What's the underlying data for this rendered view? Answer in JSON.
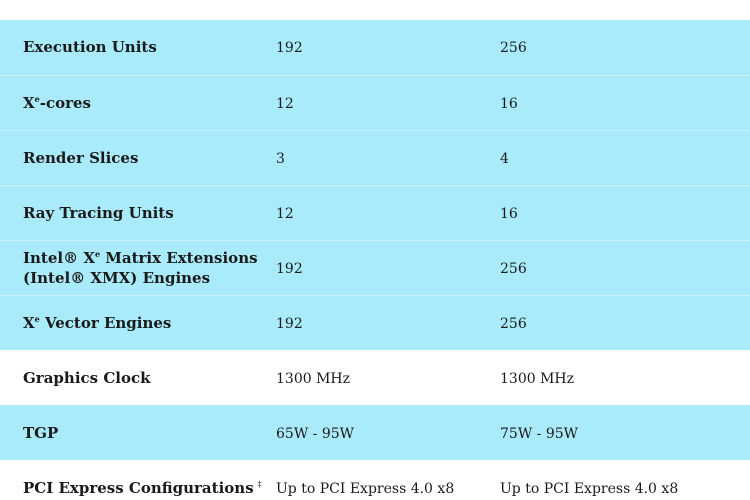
{
  "rows": [
    {
      "pre": "Execution Units",
      "sup": "",
      "post": "",
      "note": "",
      "v1": "192",
      "v2": "256",
      "bg": "cyan"
    },
    {
      "pre": "X",
      "sup": "e",
      "post": "-cores",
      "note": "",
      "v1": "12",
      "v2": "16",
      "bg": "cyan"
    },
    {
      "pre": "Render Slices",
      "sup": "",
      "post": "",
      "note": "",
      "v1": "3",
      "v2": "4",
      "bg": "cyan"
    },
    {
      "pre": "Ray Tracing Units",
      "sup": "",
      "post": "",
      "note": "",
      "v1": "12",
      "v2": "16",
      "bg": "cyan"
    },
    {
      "pre": "Intel® X",
      "sup": "e",
      "post": " Matrix Extensions (Intel® XMX) Engines",
      "note": "",
      "v1": "192",
      "v2": "256",
      "bg": "cyan"
    },
    {
      "pre": "X",
      "sup": "e",
      "post": " Vector Engines",
      "note": "",
      "v1": "192",
      "v2": "256",
      "bg": "cyan"
    },
    {
      "pre": "Graphics Clock",
      "sup": "",
      "post": "",
      "note": "",
      "v1": "1300 MHz",
      "v2": "1300 MHz",
      "bg": "white"
    },
    {
      "pre": "TGP",
      "sup": "",
      "post": "",
      "note": "",
      "v1": "65W - 95W",
      "v2": "75W - 95W",
      "bg": "cyan"
    },
    {
      "pre": "PCI Express Configurations",
      "sup": "",
      "post": "",
      "note": "‡",
      "v1": "Up to PCI Express 4.0 x8",
      "v2": "Up to PCI Express 4.0 x8",
      "bg": "white"
    }
  ]
}
